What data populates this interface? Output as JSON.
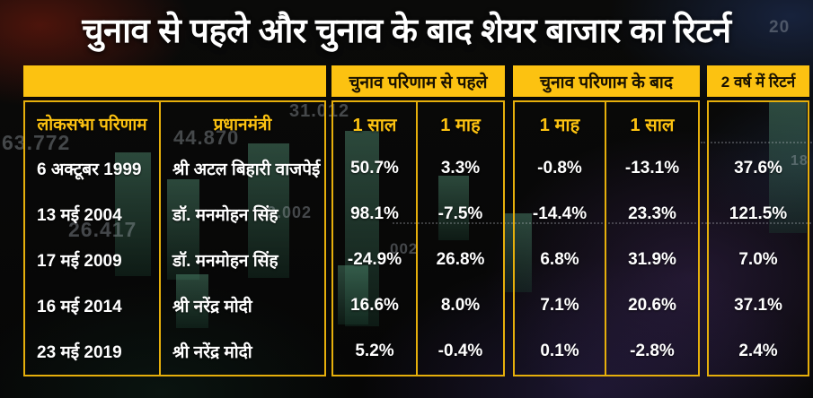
{
  "title": "चुनाव से पहले और चुनाव के बाद शेयर बाजार का रिटर्न",
  "chart_data": {
    "type": "table",
    "title": "चुनाव से पहले और चुनाव के बाद शेयर बाजार का रिटर्न",
    "group_headers": {
      "before": "चुनाव परिणाम से पहले",
      "after": "चुनाव परिणाम के बाद",
      "two_year": "2 वर्ष में रिटर्न"
    },
    "column_headers": {
      "result": "लोकसभा परिणाम",
      "pm": "प्रधानमंत्री",
      "before_1y": "1 साल",
      "before_1m": "1 माह",
      "after_1m": "1 माह",
      "after_1y": "1 साल"
    },
    "rows": [
      {
        "date": "6 अक्टूबर 1999",
        "pm": "श्री अटल बिहारी वाजपेई",
        "before_1y": "50.7%",
        "before_1m": "3.3%",
        "after_1m": "-0.8%",
        "after_1y": "-13.1%",
        "two_year": "37.6%"
      },
      {
        "date": "13 मई 2004",
        "pm": "डॉ. मनमोहन सिंह",
        "before_1y": "98.1%",
        "before_1m": "-7.5%",
        "after_1m": "-14.4%",
        "after_1y": "23.3%",
        "two_year": "121.5%"
      },
      {
        "date": "17 मई 2009",
        "pm": "डॉ. मनमोहन सिंह",
        "before_1y": "-24.9%",
        "before_1m": "26.8%",
        "after_1m": "6.8%",
        "after_1y": "31.9%",
        "two_year": "7.0%"
      },
      {
        "date": "16 मई 2014",
        "pm": "श्री नरेंद्र मोदी",
        "before_1y": "16.6%",
        "before_1m": "8.0%",
        "after_1m": "7.1%",
        "after_1y": "20.6%",
        "two_year": "37.1%"
      },
      {
        "date": "23 मई 2019",
        "pm": "श्री नरेंद्र मोदी",
        "before_1y": "5.2%",
        "before_1m": "-0.4%",
        "after_1m": "0.1%",
        "after_1y": "-2.8%",
        "two_year": "2.4%"
      }
    ],
    "background_numbers": [
      "63.772",
      "44.870",
      "31.012",
      "26.417",
      "3.002",
      "002",
      "20",
      "18"
    ],
    "colors": {
      "accent_yellow": "#fcc211",
      "border_gold": "#e6af0b",
      "header_text": "#181102",
      "data_text": "#ffffff",
      "background": "#070706"
    }
  }
}
